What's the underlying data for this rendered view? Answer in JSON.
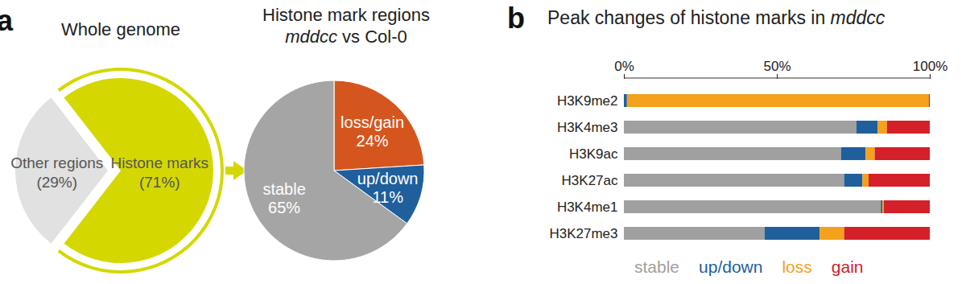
{
  "chart_data": [
    {
      "type": "pie",
      "panel": "a",
      "title": "Whole genome",
      "categories": [
        "Other regions",
        "Histone marks"
      ],
      "values": [
        29,
        71
      ],
      "value_labels": [
        "(29%)",
        "(71%)"
      ],
      "colors": [
        "#e1e1e1",
        "#d4d800"
      ],
      "data_labels": true
    },
    {
      "type": "pie",
      "title": "Histone mark regions",
      "subtitle": "mddcc vs Col-0",
      "categories": [
        "loss/gain",
        "up/down",
        "stable"
      ],
      "values": [
        24,
        11,
        65
      ],
      "value_labels": [
        "24%",
        "11%",
        "65%"
      ],
      "colors": [
        "#d4561e",
        "#1f5f9c",
        "#a5a5a5"
      ],
      "data_labels": true
    },
    {
      "type": "bar",
      "panel": "b",
      "title": "Peak changes of histone marks in mddcc",
      "orientation": "horizontal",
      "stacked": true,
      "legend": "bottom",
      "categories": [
        "H3K9me2",
        "H3K4me3",
        "H3K9ac",
        "H3K27ac",
        "H3K4me1",
        "H3K27me3"
      ],
      "series": [
        {
          "name": "stable",
          "color": "#a0a0a0",
          "values": [
            0,
            76,
            71,
            72,
            84,
            46
          ]
        },
        {
          "name": "up/down",
          "color": "#1f5f9c",
          "values": [
            1,
            7,
            8,
            6,
            0.5,
            18
          ]
        },
        {
          "name": "loss",
          "color": "#f4a11c",
          "values": [
            98.7,
            3,
            3,
            2,
            0.5,
            8
          ]
        },
        {
          "name": "gain",
          "color": "#d42029",
          "values": [
            0.3,
            14,
            18,
            20,
            15,
            28
          ]
        }
      ],
      "xlim": [
        0,
        100
      ],
      "xticks": [
        {
          "value": 0,
          "label": "0%"
        },
        {
          "value": 50,
          "label": "50%"
        },
        {
          "value": 100,
          "label": "100%"
        }
      ]
    }
  ]
}
